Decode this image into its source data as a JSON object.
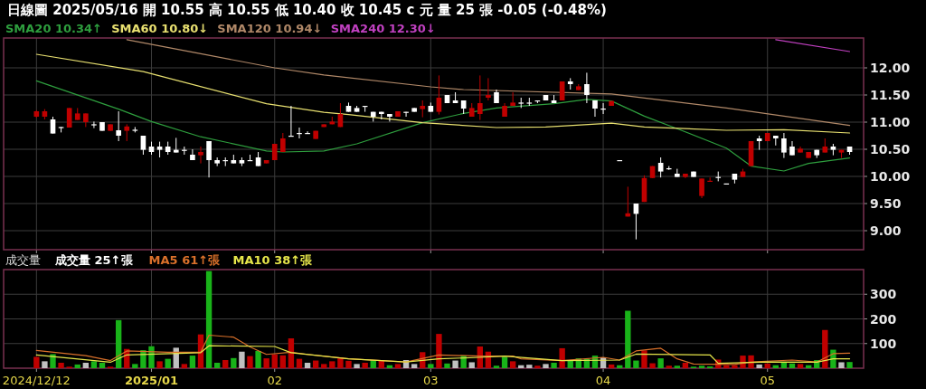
{
  "chart_data": [
    {
      "type": "candlestick",
      "title": "日線圖 2025/05/16 開 10.55 高 10.55 低 10.40 收 10.45 c 元 量 25 張 -0.05 (-0.48%)",
      "categories": [
        "2024/12/12",
        null,
        null,
        null,
        null,
        null,
        null,
        null,
        null,
        null,
        null,
        null,
        null,
        null,
        "2025/01",
        null,
        null,
        null,
        null,
        null,
        null,
        null,
        null,
        null,
        null,
        null,
        null,
        null,
        null,
        "02",
        null,
        null,
        null,
        null,
        null,
        null,
        null,
        null,
        null,
        null,
        null,
        null,
        null,
        null,
        null,
        null,
        null,
        null,
        "03",
        null,
        null,
        null,
        null,
        null,
        null,
        null,
        null,
        null,
        null,
        null,
        null,
        null,
        null,
        null,
        null,
        null,
        null,
        null,
        null,
        "04",
        null,
        null,
        null,
        null,
        null,
        null,
        null,
        null,
        null,
        null,
        null,
        null,
        null,
        null,
        null,
        null,
        null,
        null,
        null,
        "05",
        null,
        null,
        null,
        null,
        null,
        null,
        null,
        null,
        null,
        null
      ],
      "ohlc": [
        [
          11.1,
          11.22,
          11.08,
          11.2
        ],
        [
          11.1,
          11.24,
          11.05,
          11.2
        ],
        [
          11.05,
          11.1,
          10.79,
          10.79
        ],
        [
          10.91,
          10.91,
          10.81,
          10.91
        ],
        [
          10.9,
          11.26,
          10.9,
          11.26
        ],
        [
          11.04,
          11.26,
          11.04,
          11.16
        ],
        [
          11.0,
          11.16,
          10.91,
          11.16
        ],
        [
          10.96,
          11.01,
          10.89,
          10.95
        ],
        [
          11.0,
          11.0,
          10.84,
          10.84
        ],
        [
          10.84,
          10.96,
          10.84,
          10.96
        ],
        [
          10.85,
          11.2,
          10.65,
          10.75
        ],
        [
          10.84,
          10.96,
          10.65,
          10.92
        ],
        [
          10.86,
          10.91,
          10.81,
          10.86
        ],
        [
          10.75,
          10.75,
          10.4,
          10.49
        ],
        [
          10.55,
          10.64,
          10.4,
          10.45
        ],
        [
          10.55,
          10.64,
          10.35,
          10.49
        ],
        [
          10.55,
          10.64,
          10.4,
          10.45
        ],
        [
          10.49,
          10.71,
          10.44,
          10.44
        ],
        [
          10.49,
          10.55,
          10.4,
          10.49
        ],
        [
          10.4,
          10.5,
          10.3,
          10.3
        ],
        [
          10.39,
          10.55,
          10.24,
          10.45
        ],
        [
          10.65,
          10.65,
          9.98,
          10.3
        ],
        [
          10.3,
          10.35,
          10.19,
          10.24
        ],
        [
          10.3,
          10.35,
          10.19,
          10.3
        ],
        [
          10.3,
          10.4,
          10.24,
          10.24
        ],
        [
          10.3,
          10.35,
          10.19,
          10.24
        ],
        [
          10.3,
          10.4,
          10.3,
          10.3
        ],
        [
          10.35,
          10.45,
          10.19,
          10.19
        ],
        [
          10.24,
          10.3,
          10.24,
          10.3
        ],
        [
          10.3,
          10.6,
          10.3,
          10.6
        ],
        [
          10.45,
          10.8,
          10.45,
          10.7
        ],
        [
          10.75,
          11.3,
          10.75,
          10.75
        ],
        [
          10.8,
          10.9,
          10.7,
          10.8
        ],
        [
          10.8,
          10.83,
          10.8,
          10.8
        ],
        [
          10.69,
          10.84,
          10.69,
          10.84
        ],
        [
          10.91,
          10.96,
          10.91,
          10.96
        ],
        [
          10.96,
          11.1,
          10.96,
          11.01
        ],
        [
          10.91,
          11.35,
          10.91,
          11.15
        ],
        [
          11.3,
          11.36,
          11.19,
          11.19
        ],
        [
          11.26,
          11.3,
          11.19,
          11.19
        ],
        [
          11.3,
          11.3,
          11.19,
          11.3
        ],
        [
          11.19,
          11.19,
          11.01,
          11.1
        ],
        [
          11.19,
          11.19,
          11.05,
          11.15
        ],
        [
          11.15,
          11.15,
          11.01,
          11.1
        ],
        [
          11.1,
          11.2,
          11.1,
          11.2
        ],
        [
          11.19,
          11.19,
          11.1,
          11.19
        ],
        [
          11.26,
          11.26,
          11.19,
          11.19
        ],
        [
          11.24,
          11.4,
          11.09,
          11.3
        ],
        [
          11.3,
          11.36,
          11.19,
          11.19
        ],
        [
          11.19,
          11.86,
          11.14,
          11.45
        ],
        [
          11.5,
          11.5,
          11.35,
          11.35
        ],
        [
          11.4,
          11.55,
          11.35,
          11.35
        ],
        [
          11.4,
          11.4,
          11.15,
          11.25
        ],
        [
          11.1,
          11.35,
          11.1,
          11.26
        ],
        [
          11.15,
          11.86,
          11.04,
          11.35
        ],
        [
          11.45,
          11.81,
          11.4,
          11.5
        ],
        [
          11.55,
          11.6,
          11.35,
          11.35
        ],
        [
          11.1,
          11.35,
          11.1,
          11.3
        ],
        [
          11.3,
          11.55,
          11.3,
          11.36
        ],
        [
          11.36,
          11.45,
          11.26,
          11.36
        ],
        [
          11.36,
          11.45,
          11.3,
          11.36
        ],
        [
          11.4,
          11.4,
          11.35,
          11.4
        ],
        [
          11.5,
          11.5,
          11.4,
          11.4
        ],
        [
          11.4,
          11.5,
          11.35,
          11.35
        ],
        [
          11.4,
          11.75,
          11.4,
          11.75
        ],
        [
          11.75,
          11.81,
          11.6,
          11.7
        ],
        [
          11.59,
          11.7,
          11.59,
          11.66
        ],
        [
          11.7,
          11.91,
          11.35,
          11.5
        ],
        [
          11.4,
          11.4,
          11.1,
          11.25
        ],
        [
          11.25,
          11.35,
          11.15,
          11.25
        ],
        [
          11.3,
          11.39,
          11.3,
          11.39
        ],
        [
          10.3,
          10.3,
          10.3,
          10.3
        ],
        [
          9.26,
          9.81,
          9.26,
          9.32
        ],
        [
          9.5,
          9.5,
          8.84,
          9.31
        ],
        [
          9.53,
          10.02,
          9.53,
          9.97
        ],
        [
          9.97,
          10.19,
          9.97,
          10.19
        ],
        [
          10.25,
          10.35,
          9.98,
          10.09
        ],
        [
          10.15,
          10.19,
          10.12,
          10.15
        ],
        [
          10.05,
          10.14,
          9.99,
          9.99
        ],
        [
          9.99,
          10.05,
          9.97,
          10.05
        ],
        [
          10.09,
          10.09,
          9.99,
          9.99
        ],
        [
          9.64,
          9.96,
          9.6,
          9.96
        ],
        [
          9.9,
          9.98,
          9.9,
          9.92
        ],
        [
          9.99,
          10.09,
          9.91,
          9.99
        ],
        [
          9.87,
          9.87,
          9.87,
          9.87
        ],
        [
          10.05,
          10.05,
          9.87,
          9.94
        ],
        [
          9.99,
          10.14,
          9.99,
          10.09
        ],
        [
          10.19,
          10.65,
          10.19,
          10.65
        ],
        [
          10.7,
          10.75,
          10.49,
          10.65
        ],
        [
          10.65,
          10.8,
          10.65,
          10.8
        ],
        [
          10.75,
          10.75,
          10.57,
          10.7
        ],
        [
          10.7,
          10.8,
          10.34,
          10.44
        ],
        [
          10.55,
          10.65,
          10.39,
          10.39
        ],
        [
          10.44,
          10.55,
          10.44,
          10.51
        ],
        [
          10.34,
          10.45,
          10.34,
          10.45
        ],
        [
          10.49,
          10.49,
          10.34,
          10.39
        ],
        [
          10.44,
          10.7,
          10.44,
          10.55
        ],
        [
          10.55,
          10.6,
          10.39,
          10.49
        ],
        [
          10.44,
          10.49,
          10.34,
          10.49
        ],
        [
          10.55,
          10.55,
          10.4,
          10.45
        ]
      ],
      "colors": [
        "#c00000",
        "#c00000",
        "#ffffff",
        "#ffffff",
        "#c00000",
        "#c00000",
        "#c00000",
        "#ffffff",
        "#ffffff",
        "#c00000",
        "#ffffff",
        "#c00000",
        "#ffffff",
        "#ffffff",
        "#ffffff",
        "#ffffff",
        "#ffffff",
        "#ffffff",
        "#ffffff",
        "#ffffff",
        "#c00000",
        "#ffffff",
        "#ffffff",
        "#ffffff",
        "#ffffff",
        "#ffffff",
        "#ffffff",
        "#ffffff",
        "#c00000",
        "#c00000",
        "#c00000",
        "#ffffff",
        "#ffffff",
        "#ffffff",
        "#c00000",
        "#c00000",
        "#c00000",
        "#c00000",
        "#ffffff",
        "#ffffff",
        "#ffffff",
        "#ffffff",
        "#ffffff",
        "#ffffff",
        "#c00000",
        "#ffffff",
        "#ffffff",
        "#c00000",
        "#ffffff",
        "#c00000",
        "#ffffff",
        "#ffffff",
        "#ffffff",
        "#c00000",
        "#c00000",
        "#c00000",
        "#ffffff",
        "#c00000",
        "#c00000",
        "#ffffff",
        "#ffffff",
        "#ffffff",
        "#ffffff",
        "#ffffff",
        "#c00000",
        "#ffffff",
        "#c00000",
        "#ffffff",
        "#ffffff",
        "#ffffff",
        "#c00000",
        "#ffffff",
        "#c00000",
        "#ffffff",
        "#c00000",
        "#c00000",
        "#ffffff",
        "#ffffff",
        "#ffffff",
        "#c00000",
        "#ffffff",
        "#c00000",
        "#c00000",
        "#ffffff",
        "#ffffff",
        "#ffffff",
        "#c00000",
        "#c00000",
        "#ffffff",
        "#c00000",
        "#ffffff",
        "#ffffff",
        "#ffffff",
        "#c00000",
        "#c00000",
        "#ffffff",
        "#c00000",
        "#ffffff",
        "#c00000",
        "#ffffff"
      ],
      "series": [
        {
          "name": "SMA20 10.34↑",
          "type": "line",
          "color": "#2e9e3e",
          "values": [
            11.76,
            null,
            null,
            null,
            null,
            null,
            null,
            null,
            null,
            null,
            11.24,
            null,
            null,
            null,
            11.01,
            null,
            null,
            null,
            null,
            null,
            10.73,
            null,
            null,
            null,
            null,
            null,
            null,
            null,
            10.47,
            null,
            10.45,
            null,
            null,
            null,
            null,
            10.47,
            null,
            null,
            null,
            10.6,
            null,
            null,
            null,
            null,
            null,
            null,
            null,
            10.99,
            null,
            null,
            null,
            null,
            11.16,
            null,
            null,
            null,
            11.26,
            null,
            null,
            null,
            null,
            null,
            null,
            11.34,
            null,
            null,
            null,
            11.42,
            null,
            null,
            11.39,
            null,
            null,
            null,
            11.11,
            null,
            null,
            null,
            10.88,
            null,
            null,
            null,
            null,
            null,
            10.52,
            null,
            null,
            10.19,
            null,
            null,
            null,
            10.1,
            null,
            null,
            10.24,
            null,
            null,
            null,
            null,
            10.34
          ]
        },
        {
          "name": "SMA60 10.80↓",
          "type": "line",
          "color": "#e8e070",
          "values": [
            12.25,
            null,
            null,
            null,
            null,
            null,
            null,
            null,
            null,
            null,
            null,
            null,
            null,
            11.93,
            null,
            null,
            null,
            null,
            null,
            null,
            null,
            null,
            null,
            null,
            null,
            null,
            null,
            null,
            11.34,
            null,
            null,
            null,
            null,
            null,
            null,
            11.18,
            null,
            null,
            11.14,
            null,
            null,
            null,
            null,
            null,
            null,
            null,
            null,
            10.99,
            null,
            null,
            null,
            null,
            null,
            null,
            null,
            null,
            10.9,
            null,
            null,
            null,
            null,
            null,
            10.91,
            null,
            null,
            null,
            null,
            null,
            null,
            null,
            10.98,
            null,
            null,
            null,
            10.91,
            null,
            null,
            null,
            null,
            null,
            null,
            null,
            null,
            null,
            10.85,
            null,
            null,
            null,
            null,
            null,
            null,
            10.86,
            null,
            null,
            null,
            null,
            null,
            null,
            null,
            10.8
          ]
        },
        {
          "name": "SMA120 10.94↓",
          "type": "line",
          "color": "#b08868",
          "values": [
            null,
            null,
            null,
            null,
            null,
            null,
            null,
            null,
            null,
            null,
            null,
            12.52,
            null,
            null,
            null,
            null,
            null,
            null,
            null,
            null,
            12.26,
            null,
            null,
            null,
            null,
            null,
            null,
            null,
            null,
            12.0,
            null,
            null,
            null,
            null,
            null,
            11.87,
            null,
            null,
            null,
            null,
            null,
            null,
            null,
            null,
            null,
            null,
            null,
            null,
            11.65,
            null,
            null,
            null,
            11.6,
            null,
            null,
            null,
            null,
            null,
            null,
            null,
            null,
            null,
            null,
            null,
            null,
            null,
            null,
            null,
            null,
            null,
            11.52,
            null,
            null,
            null,
            null,
            null,
            null,
            null,
            null,
            null,
            null,
            null,
            null,
            null,
            11.26,
            null,
            null,
            null,
            null,
            null,
            null,
            null,
            null,
            null,
            null,
            null,
            null,
            null,
            null,
            10.94
          ]
        },
        {
          "name": "SMA240 12.30↓",
          "type": "line",
          "color": "#c040c0",
          "values": [
            null,
            null,
            null,
            null,
            null,
            null,
            null,
            null,
            null,
            null,
            null,
            null,
            null,
            null,
            null,
            null,
            null,
            null,
            null,
            null,
            null,
            null,
            null,
            null,
            null,
            null,
            null,
            null,
            null,
            null,
            null,
            null,
            null,
            null,
            null,
            null,
            null,
            null,
            null,
            null,
            null,
            null,
            null,
            null,
            null,
            null,
            null,
            null,
            null,
            null,
            null,
            null,
            null,
            null,
            null,
            null,
            null,
            null,
            null,
            null,
            null,
            null,
            null,
            null,
            null,
            null,
            null,
            null,
            null,
            null,
            null,
            null,
            null,
            null,
            null,
            null,
            null,
            null,
            null,
            null,
            null,
            null,
            null,
            null,
            null,
            null,
            null,
            null,
            null,
            null,
            12.52,
            null,
            null,
            null,
            null,
            null,
            null,
            null,
            null,
            12.3
          ]
        }
      ],
      "ylim": [
        8.65,
        12.55
      ],
      "yticks": [
        {
          "value": 9,
          "label": "9.00"
        },
        {
          "value": 9.5,
          "label": "9.50"
        },
        {
          "value": 10,
          "label": "10.00"
        },
        {
          "value": 10.5,
          "label": "10.50"
        },
        {
          "value": 11,
          "label": "11.00"
        },
        {
          "value": 11.5,
          "label": "11.50"
        },
        {
          "value": 12,
          "label": "12.00"
        }
      ],
      "tick_labels": "y",
      "grid": true,
      "legend": "top left"
    },
    {
      "type": "bar",
      "title": "成交量",
      "annotations": [
        "成交量 25↑張"
      ],
      "categories": [
        "2024/12/12",
        null,
        null,
        null,
        null,
        null,
        null,
        null,
        null,
        null,
        null,
        null,
        null,
        null,
        "2025/01",
        null,
        null,
        null,
        null,
        null,
        null,
        null,
        null,
        null,
        null,
        null,
        null,
        null,
        null,
        "02",
        null,
        null,
        null,
        null,
        null,
        null,
        null,
        null,
        null,
        null,
        null,
        null,
        null,
        null,
        null,
        null,
        null,
        null,
        "03",
        null,
        null,
        null,
        null,
        null,
        null,
        null,
        null,
        null,
        null,
        null,
        null,
        null,
        null,
        null,
        null,
        null,
        null,
        null,
        null,
        "04",
        null,
        null,
        null,
        null,
        null,
        null,
        null,
        null,
        null,
        null,
        null,
        null,
        null,
        null,
        null,
        null,
        null,
        null,
        null,
        "05",
        null,
        null,
        null,
        null,
        null,
        null,
        null,
        null,
        null,
        null
      ],
      "values": [
        46,
        28,
        57,
        22,
        6,
        15,
        22,
        28,
        22,
        6,
        195,
        78,
        17,
        73,
        89,
        28,
        38,
        83,
        17,
        51,
        137,
        394,
        22,
        33,
        41,
        67,
        49,
        70,
        40,
        56,
        52,
        121,
        38,
        22,
        31,
        17,
        28,
        44,
        30,
        17,
        22,
        33,
        31,
        12,
        17,
        33,
        17,
        65,
        17,
        139,
        19,
        31,
        51,
        24,
        88,
        67,
        10,
        46,
        28,
        12,
        14,
        10,
        17,
        22,
        81,
        31,
        40,
        38,
        51,
        44,
        15,
        12,
        233,
        31,
        72,
        20,
        40,
        10,
        10,
        22,
        6,
        10,
        7,
        35,
        12,
        12,
        51,
        52,
        15,
        19,
        12,
        24,
        19,
        17,
        12,
        33,
        155,
        75,
        24,
        25
      ],
      "colors": [
        "#c00000",
        "#c0c0c0",
        "#19b319",
        "#c00000",
        "#c00000",
        "#19b319",
        "#c0c0c0",
        "#19b319",
        "#19b319",
        "#c00000",
        "#19b319",
        "#c00000",
        "#19b319",
        "#19b319",
        "#19b319",
        "#c00000",
        "#19b319",
        "#c0c0c0",
        "#c00000",
        "#19b319",
        "#c00000",
        "#19b319",
        "#19b319",
        "#c00000",
        "#19b319",
        "#c0c0c0",
        "#c00000",
        "#19b319",
        "#c00000",
        "#c00000",
        "#c00000",
        "#c00000",
        "#c00000",
        "#c0c0c0",
        "#c00000",
        "#c00000",
        "#c00000",
        "#c00000",
        "#c00000",
        "#c0c0c0",
        "#c00000",
        "#19b319",
        "#c00000",
        "#19b319",
        "#c00000",
        "#c0c0c0",
        "#c0c0c0",
        "#c00000",
        "#19b319",
        "#c00000",
        "#19b319",
        "#c0c0c0",
        "#19b319",
        "#c0c0c0",
        "#c00000",
        "#c00000",
        "#19b319",
        "#19b319",
        "#c00000",
        "#c0c0c0",
        "#c0c0c0",
        "#c00000",
        "#c0c0c0",
        "#19b319",
        "#c00000",
        "#19b319",
        "#19b319",
        "#19b319",
        "#19b319",
        "#c0c0c0",
        "#c00000",
        "#19b319",
        "#19b319",
        "#19b319",
        "#c00000",
        "#c00000",
        "#19b319",
        "#c00000",
        "#19b319",
        "#c00000",
        "#19b319",
        "#19b319",
        "#19b319",
        "#c00000",
        "#c00000",
        "#c00000",
        "#c00000",
        "#c00000",
        "#c0c0c0",
        "#c00000",
        "#19b319",
        "#19b319",
        "#19b319",
        "#c00000",
        "#19b319",
        "#19b319",
        "#c00000",
        "#19b319",
        "#c0c0c0",
        "#19b319"
      ],
      "series": [
        {
          "name": "MA5 61↑張",
          "type": "line",
          "color": "#d9702a",
          "values": [
            72,
            null,
            null,
            null,
            null,
            null,
            51,
            null,
            null,
            31,
            null,
            70,
            null,
            null,
            null,
            null,
            65,
            null,
            null,
            null,
            65,
            134,
            null,
            null,
            126,
            null,
            86,
            null,
            56,
            null,
            null,
            65,
            null,
            56,
            null,
            null,
            null,
            null,
            38,
            null,
            null,
            null,
            null,
            null,
            null,
            25,
            null,
            null,
            null,
            54,
            null,
            null,
            null,
            null,
            49,
            null,
            null,
            null,
            49,
            38,
            null,
            null,
            null,
            null,
            31,
            null,
            null,
            null,
            null,
            44,
            null,
            33,
            null,
            70,
            null,
            null,
            81,
            null,
            38,
            null,
            17,
            null,
            null,
            null,
            null,
            15,
            null,
            25,
            null,
            null,
            null,
            null,
            33,
            null,
            null,
            25,
            null,
            59,
            null,
            61
          ]
        },
        {
          "name": "MA10 38↑張",
          "type": "line",
          "color": "#e6e64a",
          "values": [
            54,
            null,
            null,
            null,
            null,
            null,
            null,
            null,
            null,
            24,
            null,
            54,
            null,
            null,
            null,
            null,
            null,
            null,
            null,
            null,
            63,
            91,
            null,
            null,
            null,
            null,
            null,
            null,
            null,
            88,
            null,
            63,
            null,
            null,
            null,
            null,
            null,
            null,
            38,
            null,
            null,
            null,
            null,
            null,
            null,
            25,
            null,
            null,
            null,
            38,
            null,
            null,
            null,
            null,
            44,
            null,
            null,
            49,
            null,
            null,
            null,
            null,
            null,
            null,
            31,
            null,
            null,
            null,
            null,
            null,
            null,
            33,
            null,
            57,
            null,
            null,
            null,
            null,
            null,
            null,
            null,
            null,
            54,
            20,
            null,
            null,
            null,
            null,
            null,
            25,
            null,
            null,
            null,
            null,
            null,
            24,
            null,
            38,
            null,
            38
          ]
        }
      ],
      "ylim": [
        0,
        400
      ],
      "yticks": [
        100,
        200,
        300
      ],
      "grid": true,
      "legend": "top left"
    }
  ]
}
